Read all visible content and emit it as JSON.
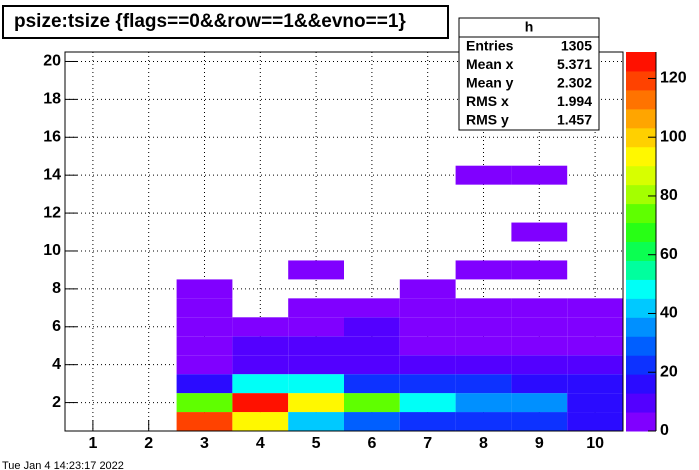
{
  "chart_data": {
    "type": "heatmap",
    "title": "psize:tsize {flags==0&&row==1&&evno==1}",
    "xlim": [
      0.5,
      10.5
    ],
    "xticks": [
      1,
      2,
      3,
      4,
      5,
      6,
      7,
      8,
      9,
      10
    ],
    "ylim": [
      0.5,
      20.5
    ],
    "yticks": [
      2,
      4,
      6,
      8,
      10,
      12,
      14,
      16,
      18,
      20
    ],
    "zlim": [
      0,
      129
    ],
    "zticks": [
      0,
      20,
      40,
      60,
      80,
      100,
      120
    ],
    "grid": true,
    "colorscale": [
      "#8000ff",
      "#3300ff",
      "#0044ff",
      "#0099ff",
      "#00ffff",
      "#00ff66",
      "#33ff00",
      "#aaff00",
      "#ffff00",
      "#ffbb00",
      "#ff6600",
      "#ff1100"
    ],
    "x": [
      3,
      4,
      5,
      6,
      7,
      8,
      9,
      10,
      3,
      4,
      5,
      6,
      7,
      8,
      9,
      10,
      3,
      4,
      5,
      6,
      7,
      8,
      9,
      10,
      3,
      4,
      5,
      6,
      7,
      8,
      9,
      10,
      3,
      4,
      5,
      6,
      7,
      8,
      9,
      10,
      3,
      4,
      5,
      6,
      7,
      8,
      9,
      10,
      3,
      5,
      6,
      7,
      8,
      9,
      10,
      3,
      7,
      5,
      8,
      9,
      9,
      8,
      9
    ],
    "y": [
      1,
      1,
      1,
      1,
      1,
      1,
      1,
      1,
      2,
      2,
      2,
      2,
      2,
      2,
      2,
      2,
      3,
      3,
      3,
      3,
      3,
      3,
      3,
      3,
      4,
      4,
      4,
      4,
      4,
      4,
      4,
      4,
      5,
      5,
      5,
      5,
      5,
      5,
      5,
      5,
      6,
      6,
      6,
      6,
      6,
      6,
      6,
      6,
      7,
      7,
      7,
      7,
      7,
      7,
      7,
      8,
      8,
      9,
      9,
      9,
      11,
      14,
      14
    ],
    "values": [
      122,
      92,
      40,
      28,
      25,
      23,
      23,
      15,
      72,
      124,
      92,
      72,
      48,
      36,
      36,
      15,
      18,
      50,
      50,
      25,
      25,
      25,
      18,
      14,
      6,
      10,
      12,
      12,
      9,
      9,
      7,
      7,
      4,
      7,
      9,
      10,
      5,
      5,
      5,
      5,
      3,
      4,
      6,
      8,
      4,
      4,
      4,
      4,
      3,
      3,
      3,
      3,
      3,
      3,
      3,
      2,
      2,
      1,
      1,
      1,
      1,
      1,
      1
    ],
    "stats": {
      "title": "h",
      "rows": [
        [
          "Entries",
          1305
        ],
        [
          "Mean x",
          5.371
        ],
        [
          "Mean y",
          2.302
        ],
        [
          "RMS x",
          1.994
        ],
        [
          "RMS y",
          1.457
        ]
      ]
    },
    "footer": "Tue Jan  4 14:23:17 2022"
  }
}
